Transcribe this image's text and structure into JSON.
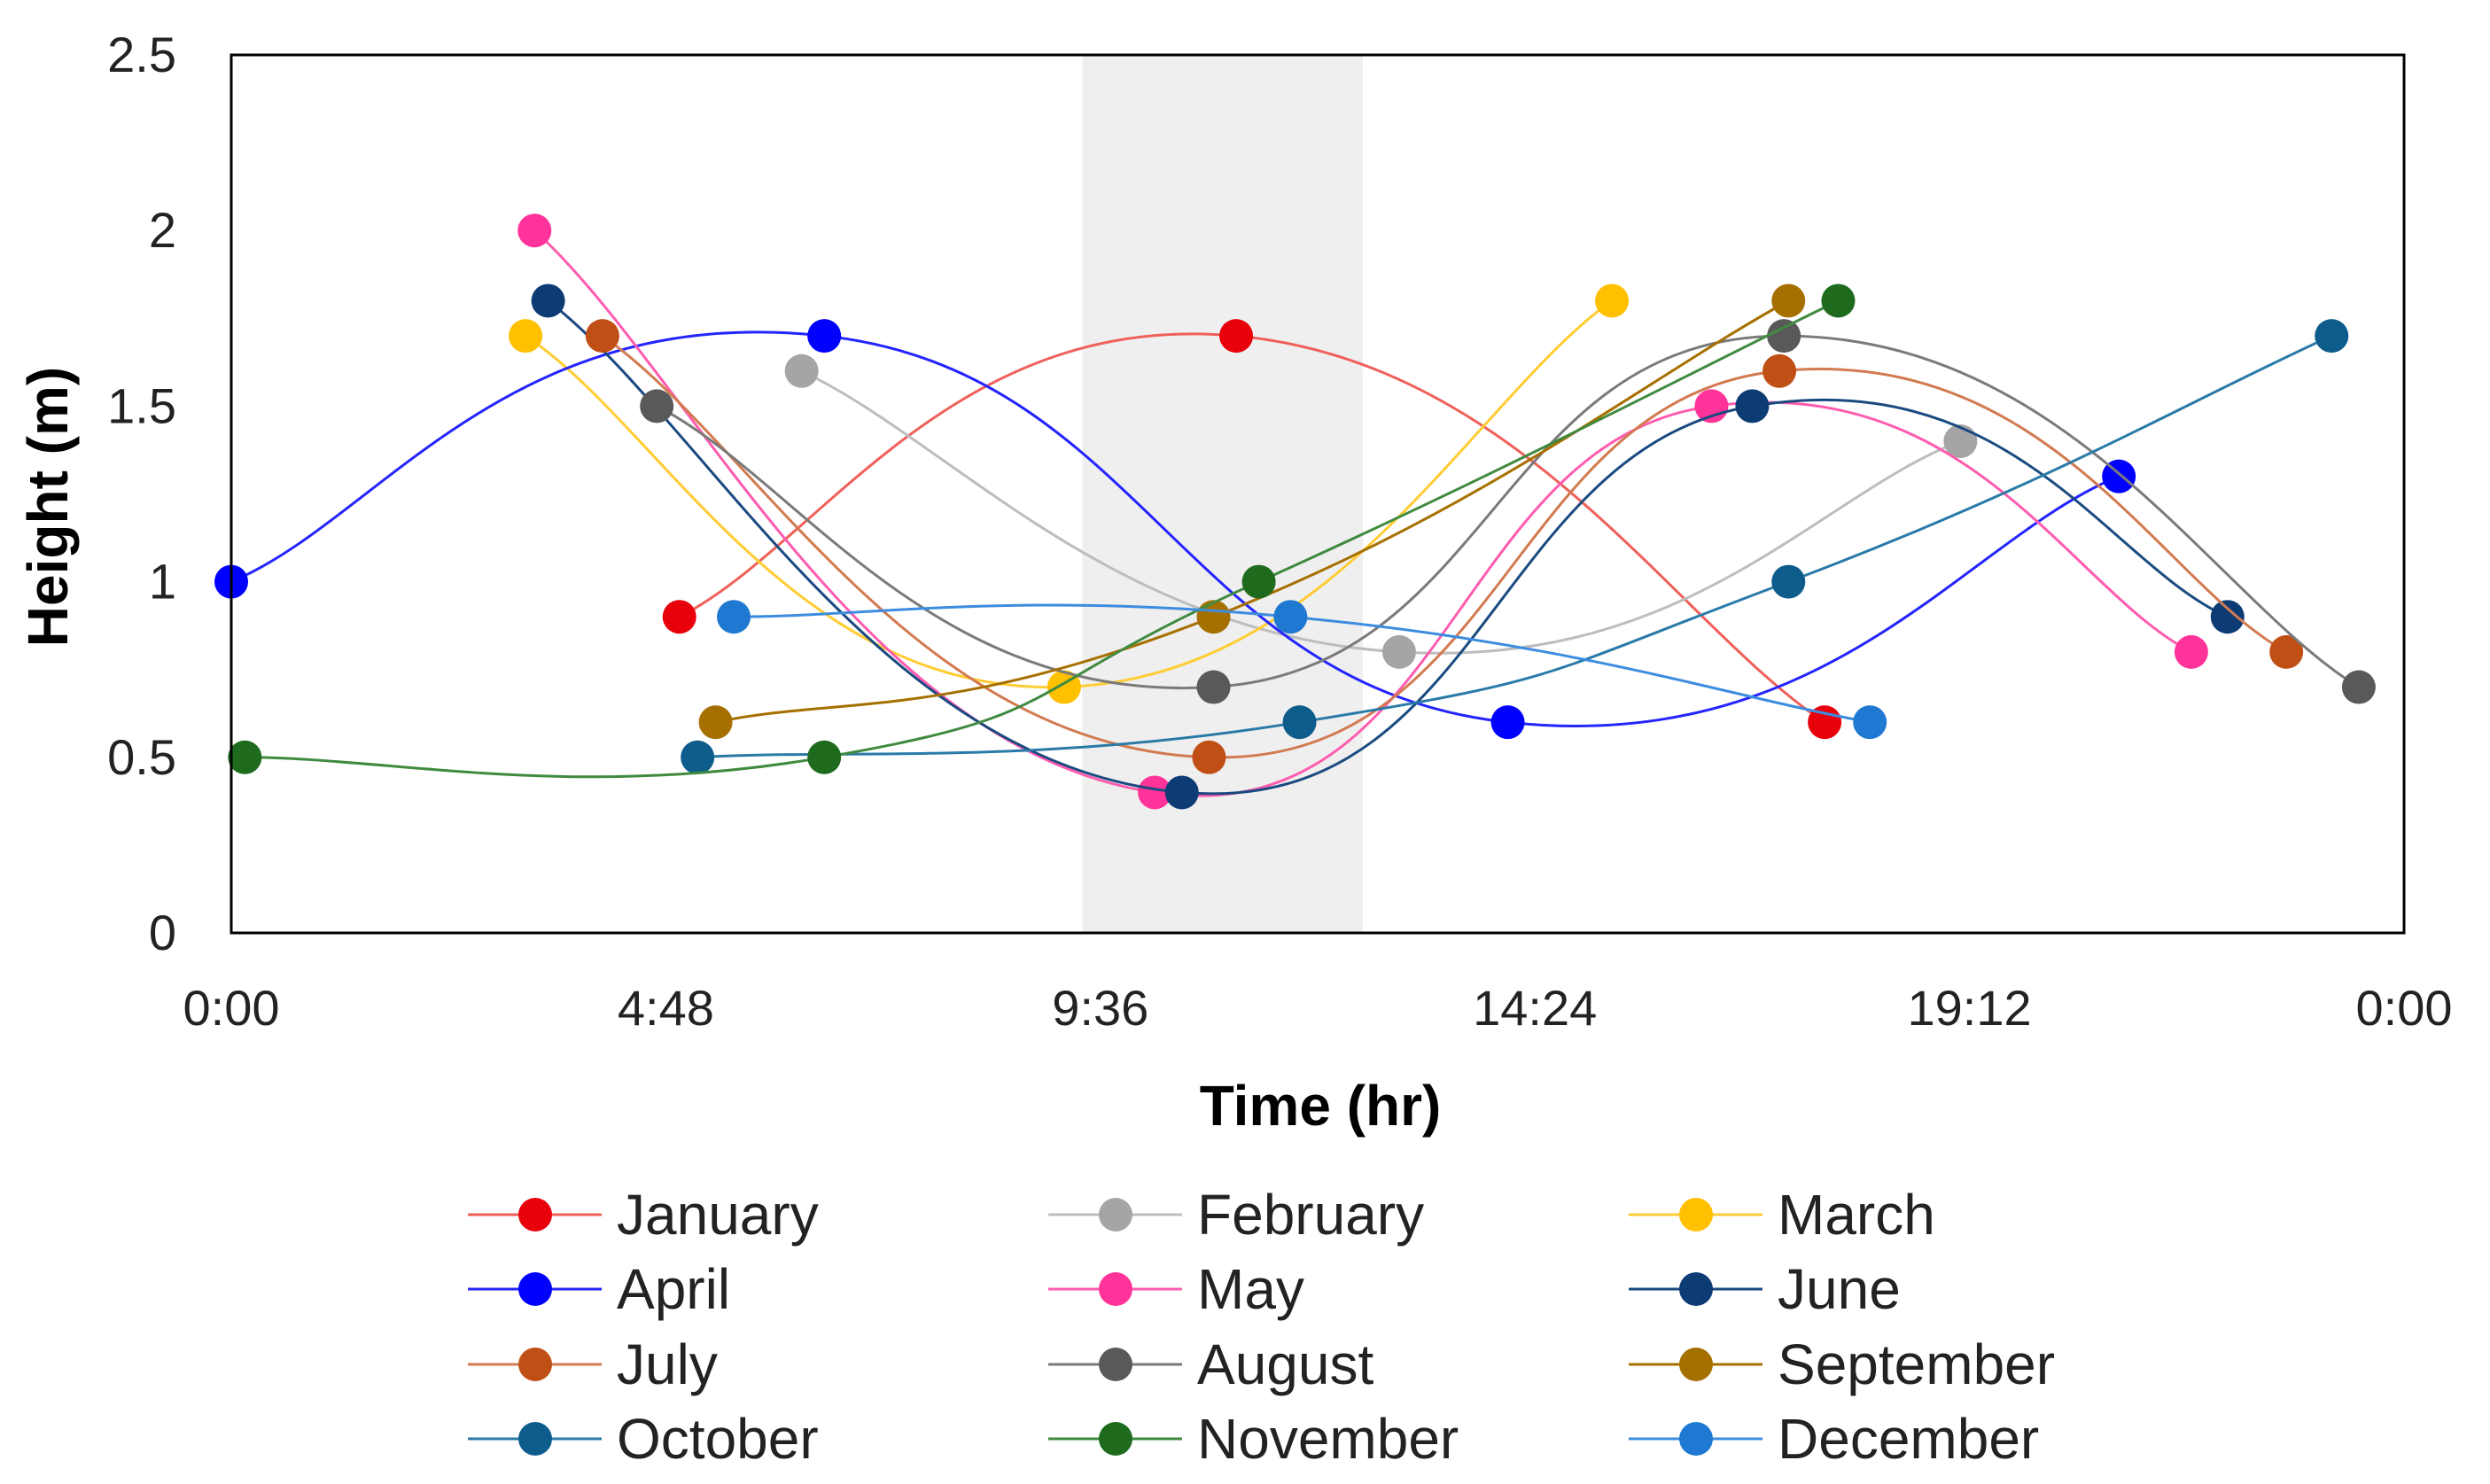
{
  "chart_data": {
    "type": "line",
    "title": "",
    "xlabel": "Time (hr)",
    "ylabel": "Height (m)",
    "xlim": [
      0,
      24
    ],
    "ylim": [
      0,
      2.5
    ],
    "x_ticks": [
      0,
      4.8,
      9.6,
      14.4,
      19.2,
      24
    ],
    "x_tick_labels": [
      "0:00",
      "4:48",
      "9:36",
      "14:24",
      "19:12",
      "0:00"
    ],
    "y_ticks": [
      0,
      0.5,
      1,
      1.5,
      2,
      2.5
    ],
    "y_tick_labels": [
      "0",
      "0.5",
      "1",
      "1.5",
      "2",
      "2.5"
    ],
    "grid": false,
    "legend_position": "bottom",
    "shaded_band": {
      "x_start": 9.4,
      "x_end": 12.5,
      "color": "#efefef"
    },
    "series": [
      {
        "name": "January",
        "color": "#e8000b",
        "line_color": "#f0605a",
        "x": [
          4.95,
          11.1,
          17.6
        ],
        "y": [
          0.9,
          1.7,
          0.6
        ]
      },
      {
        "name": "February",
        "color": "#a5a5a5",
        "line_color": "#bdbdbd",
        "x": [
          6.3,
          12.9,
          19.1
        ],
        "y": [
          1.6,
          0.8,
          1.4
        ]
      },
      {
        "name": "March",
        "color": "#ffc000",
        "line_color": "#ffcc33",
        "x": [
          3.25,
          9.2,
          15.25
        ],
        "y": [
          1.7,
          0.7,
          1.8
        ]
      },
      {
        "name": "April",
        "color": "#0000ff",
        "line_color": "#2424ff",
        "x": [
          0.0,
          6.55,
          14.1,
          20.85
        ],
        "y": [
          1.0,
          1.7,
          0.6,
          1.3
        ]
      },
      {
        "name": "May",
        "color": "#ff3399",
        "line_color": "#ff5cb0",
        "x": [
          3.35,
          10.2,
          16.35,
          21.65
        ],
        "y": [
          2.0,
          0.4,
          1.5,
          0.8
        ]
      },
      {
        "name": "June",
        "color": "#0d3b73",
        "line_color": "#1a4a80",
        "x": [
          3.5,
          10.5,
          16.8,
          22.05
        ],
        "y": [
          1.8,
          0.4,
          1.5,
          0.9
        ]
      },
      {
        "name": "July",
        "color": "#c04f15",
        "line_color": "#d27a50",
        "x": [
          4.1,
          10.8,
          17.1,
          22.7
        ],
        "y": [
          1.7,
          0.5,
          1.6,
          0.8
        ]
      },
      {
        "name": "August",
        "color": "#595959",
        "line_color": "#7a7a7a",
        "x": [
          4.7,
          10.85,
          17.15,
          23.5
        ],
        "y": [
          1.5,
          0.7,
          1.7,
          0.7
        ]
      },
      {
        "name": "September",
        "color": "#a67000",
        "line_color": "#a67000",
        "x": [
          5.35,
          10.85,
          17.2
        ],
        "y": [
          0.6,
          0.9,
          1.8
        ]
      },
      {
        "name": "October",
        "color": "#0d5c8c",
        "line_color": "#2a7aa8",
        "x": [
          5.15,
          11.8,
          17.2,
          23.2
        ],
        "y": [
          0.5,
          0.6,
          1.0,
          1.7
        ]
      },
      {
        "name": "November",
        "color": "#1e6b1e",
        "line_color": "#3f8a3f",
        "x": [
          0.15,
          6.55,
          11.35,
          17.75
        ],
        "y": [
          0.5,
          0.5,
          1.0,
          1.8
        ]
      },
      {
        "name": "December",
        "color": "#1f78d1",
        "line_color": "#3c8ce0",
        "x": [
          5.55,
          11.7,
          18.1
        ],
        "y": [
          0.9,
          0.9,
          0.6
        ]
      }
    ]
  }
}
